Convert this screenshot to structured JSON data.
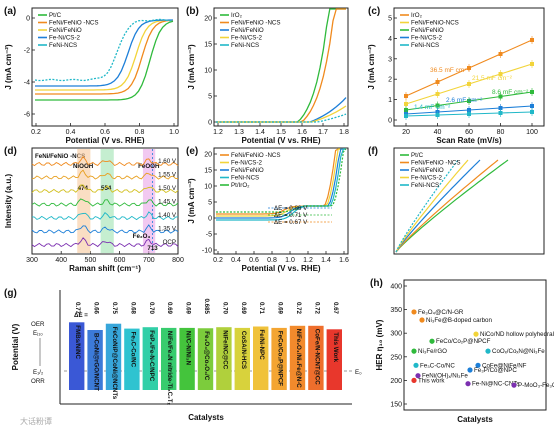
{
  "colors": {
    "red": "#e8372c",
    "orange": "#f08a1e",
    "yellow": "#f2d43a",
    "green": "#2fba3c",
    "blue": "#1d7fd8",
    "cyan": "#20b8c8",
    "pink": "#d84fc6",
    "purple": "#7b2fb0"
  },
  "panel_a": {
    "label": "(a)",
    "xlabel": "Potential (V vs. RHE)",
    "ylabel": "J (mA cm⁻²)",
    "xticks": [
      "0.2",
      "0.4",
      "0.6",
      "0.8",
      "1.0"
    ],
    "yticks": [
      "0",
      "-2",
      "-4",
      "-6"
    ],
    "legend": [
      "Pt/C",
      "FeNi/FeNiO -NCS",
      "FeNi/FeNiO",
      "Fe-Ni/CS-2",
      "FeNi-NCS"
    ]
  },
  "panel_b": {
    "label": "(b)",
    "xlabel": "Potential (V vs. RHE)",
    "ylabel": "J (mA cm⁻²)",
    "xticks": [
      "1.2",
      "1.3",
      "1.4",
      "1.5",
      "1.6",
      "1.7",
      "1.8"
    ],
    "yticks": [
      "0",
      "5",
      "10",
      "15",
      "20"
    ],
    "legend": [
      "IrO₂",
      "FeNi/FeNiO -NCS",
      "FeNi/FeNiO",
      "Fe-Ni/CS-2",
      "FeNi-NCS"
    ]
  },
  "panel_c": {
    "label": "(c)",
    "xlabel": "Scan Rate (mV/s)",
    "ylabel": "J (mA cm⁻²)",
    "xticks": [
      "20",
      "40",
      "60",
      "80",
      "100"
    ],
    "yticks": [
      "0",
      "1",
      "2",
      "3",
      "4",
      "5"
    ],
    "legend": [
      "IrO₂",
      "FeNi/FeNiO-NCS",
      "FeNi/FeNiO",
      "Fe-Ni/CS-2",
      "FeNi-NCS"
    ],
    "annotations": [
      "36.5 mF cm⁻²",
      "21.5 mF cm⁻²",
      "8.6 mF cm⁻²",
      "2.6 mF cm⁻²",
      "1.4 mF cm⁻²"
    ]
  },
  "panel_d": {
    "label": "(d)",
    "title": "FeNi/FeNiO -NCS",
    "xlabel": "Raman shift (cm⁻¹)",
    "ylabel": "Intensity (a.u.)",
    "xticks": [
      "300",
      "400",
      "500",
      "600",
      "700",
      "800"
    ],
    "peaks": [
      "NiOOH",
      "FeOOH",
      "Fe₂O₃"
    ],
    "peak_positions": [
      "474",
      "554",
      "713"
    ],
    "potentials": [
      "1.60 V",
      "1.55 V",
      "1.50 V",
      "1.45 V",
      "1.40 V",
      "1.35 V",
      "OCP"
    ]
  },
  "panel_e": {
    "label": "(e)",
    "xlabel": "Potential (V vs. RHE)",
    "ylabel": "J (mA cm⁻²)",
    "xticks": [
      "0.2",
      "0.4",
      "0.6",
      "0.8",
      "1.0",
      "1.2",
      "1.4",
      "1.6"
    ],
    "yticks": [
      "-10",
      "-5",
      "0",
      "5",
      "10",
      "15",
      "20"
    ],
    "legend": [
      "FeNi/FeNiO -NCS",
      "Fe-Ni/CS-2",
      "FeNi/FeNiO",
      "FeNi-NCS",
      "Pt/IrO₂"
    ],
    "deltas": [
      "ΔE = 0.86 V",
      "ΔE = 0.71 V",
      "ΔE = 0.67 V"
    ]
  },
  "panel_f": {
    "label": "(f)",
    "xlabel": "Potential (V vs. RHE)",
    "yticks": [],
    "legend": [
      "Pt/C",
      "FeNi/FeNiO -NCS",
      "FeNi/FeNiO",
      "Fe-Ni/CS-2",
      "FeNi-NCS"
    ]
  },
  "panel_g": {
    "label": "(g)",
    "xlabel": "Catalysts",
    "ylabel": "Potential (V)",
    "delta_label": "ΔE =",
    "e0": "E₀",
    "oer": "OER",
    "ej10": "Eⱼ₁₀",
    "ehalf": "E₁/₂",
    "orr": "ORR",
    "bars": [
      {
        "name": "FMBs/NiNC",
        "de": "0.77"
      },
      {
        "name": "B-CoNi@rGO/NCNT",
        "de": "0.66"
      },
      {
        "name": "FeCoNiP@CoNi@NCNTs",
        "de": "0.75"
      },
      {
        "name": "Fe₃C-Co/NC",
        "de": "0.68"
      },
      {
        "name": "FeP₃/Fe-N-C/NPC",
        "de": "0.70"
      },
      {
        "name": "NiFe/Fe₄N nitride-Ti₃C₂Tₓ",
        "de": "0.69"
      },
      {
        "name": "Ni/C-N/Ni₃N",
        "de": "0.69"
      },
      {
        "name": "Fe₃O₄@Co₃O₄/C",
        "de": "0.685"
      },
      {
        "name": "NiFe/NC@CC",
        "de": "0.70"
      },
      {
        "name": "CoSA/N-HCS",
        "de": "0.69"
      },
      {
        "name": "Fe/Ni-NPC",
        "de": "0.71"
      },
      {
        "name": "FeCo/Co₂P@NPCF",
        "de": "0.69"
      },
      {
        "name": "NiFe₂O₄/Ni₃Fe@N-C",
        "de": "0.72"
      },
      {
        "name": "CoFe/N-NCNT@CC",
        "de": "0.72"
      },
      {
        "name": "This Work",
        "de": "0.67"
      }
    ]
  },
  "panel_h": {
    "label": "(h)",
    "xlabel": "Catalysts",
    "ylabel": "HER η₁₀ (mV)",
    "yticks": [
      "150",
      "200",
      "250",
      "300",
      "350",
      "400"
    ],
    "points": [
      {
        "name": "Fe₃O₄@C/N-GR",
        "v": 345
      },
      {
        "name": "Ni₃Fe@B-doped carbon",
        "v": 328
      },
      {
        "name": "NiCo/ND hollow polyhedral",
        "v": 298
      },
      {
        "name": "FeCo/Co₂P@NPCF",
        "v": 283
      },
      {
        "name": "Ni₃Fe/rGO",
        "v": 262
      },
      {
        "name": "CoOₓ/CoₓN@Ni₃Fe",
        "v": 262
      },
      {
        "name": "Fe₃C-Co/NC",
        "v": 232
      },
      {
        "name": "CoFe@NiFe/NF",
        "v": 232
      },
      {
        "name": "Fe₃P/Co@NPC",
        "v": 222
      },
      {
        "name": "FeNi(OH)ₓ/Ni₃Fe",
        "v": 210
      },
      {
        "name": "This work",
        "v": 200
      },
      {
        "name": "Fe-Ni@NC-CNTs",
        "v": 193
      },
      {
        "name": "P-MoO₃-Fe₃O₄",
        "v": 190
      }
    ]
  },
  "watermark": "大话粉谭"
}
